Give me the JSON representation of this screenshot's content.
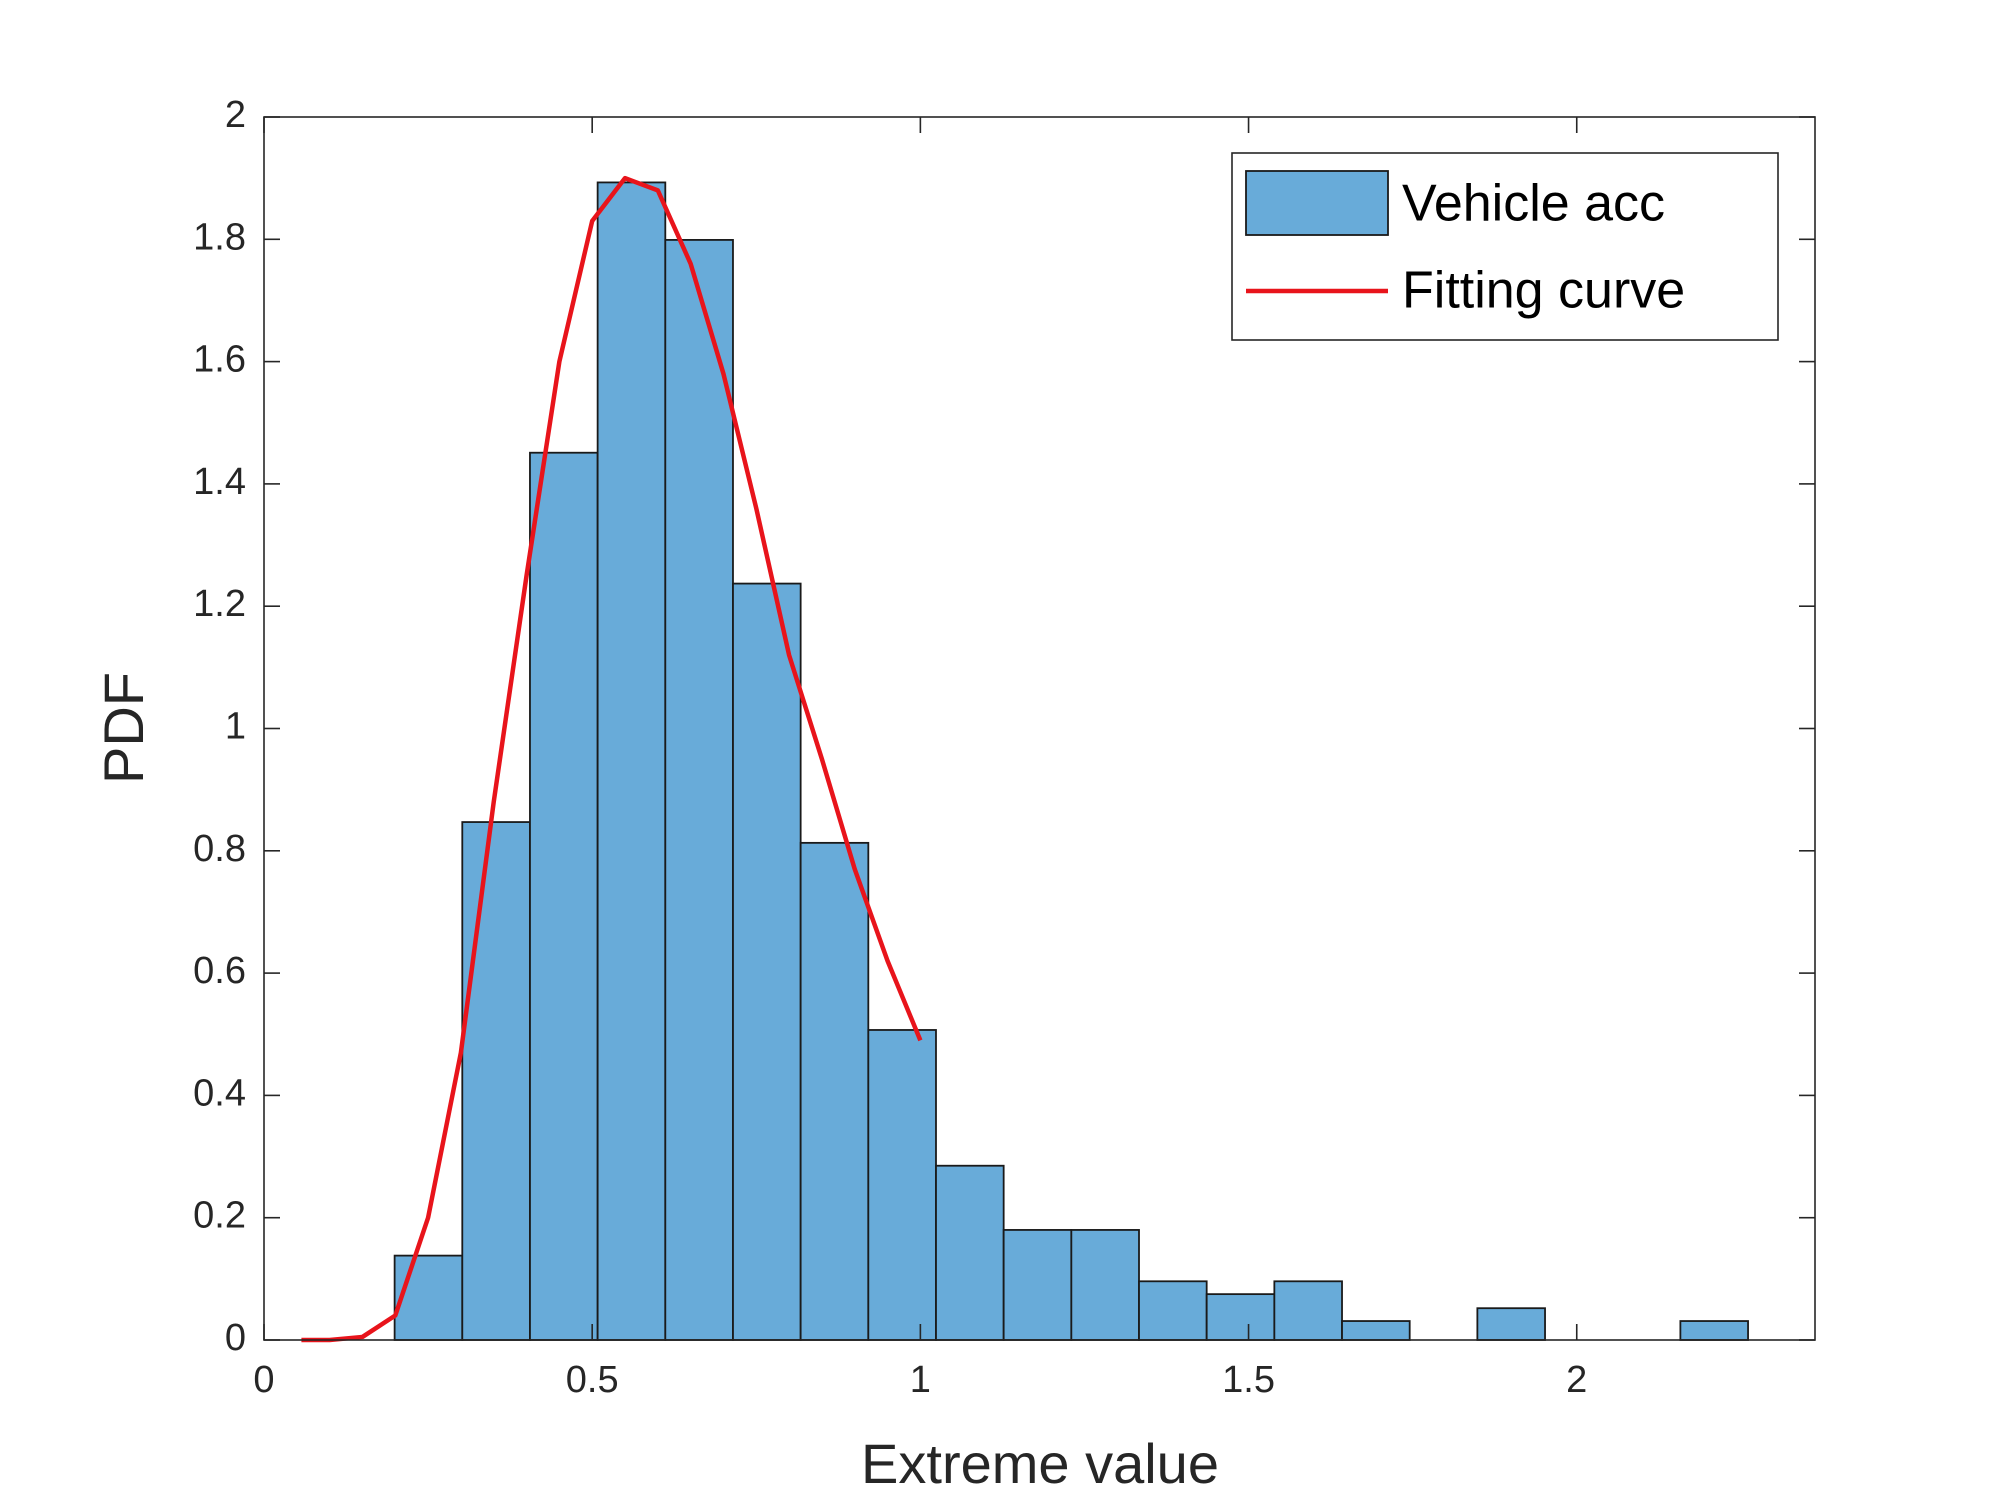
{
  "chart_data": {
    "type": "histogram",
    "xlabel": "Extreme value",
    "ylabel": "PDF",
    "bins": [
      0.199,
      0.3021,
      0.4052,
      0.5083,
      0.6114,
      0.7145,
      0.8176,
      0.9207,
      1.0238,
      1.1269,
      1.23,
      1.3331,
      1.4362,
      1.5393,
      1.6424,
      1.7455,
      1.8486,
      1.9517,
      2.0548,
      2.1579,
      2.261
    ],
    "values": [
      0.138,
      0.847,
      1.451,
      1.893,
      1.799,
      1.237,
      0.813,
      0.507,
      0.285,
      0.18,
      0.18,
      0.096,
      0.075,
      0.096,
      0.031,
      0,
      0.052,
      0,
      0,
      0.031
    ],
    "name": "Vehicle acc",
    "color": "#68abd9",
    "curve": {
      "name": "Fitting curve",
      "color": "#e8141b",
      "x": [
        0.057,
        0.1,
        0.15,
        0.2,
        0.25,
        0.3,
        0.35,
        0.4,
        0.45,
        0.5,
        0.55,
        0.6,
        0.65,
        0.7,
        0.75,
        0.8,
        0.85,
        0.9,
        0.95,
        1.0
      ],
      "values": [
        0,
        0,
        0.005,
        0.04,
        0.2,
        0.47,
        0.88,
        1.25,
        1.6,
        1.83,
        1.9,
        1.88,
        1.76,
        1.58,
        1.36,
        1.12,
        0.95,
        0.77,
        0.62,
        0.49
      ]
    },
    "xlim": [
      0,
      2.363
    ],
    "ylim": [
      0,
      2
    ],
    "xticks": [
      0,
      0.5,
      1,
      1.5,
      2
    ],
    "yticks": [
      0,
      0.2,
      0.4,
      0.6,
      0.8,
      1,
      1.2,
      1.4,
      1.6,
      1.8,
      2
    ],
    "legend": "upper right",
    "box": true
  }
}
